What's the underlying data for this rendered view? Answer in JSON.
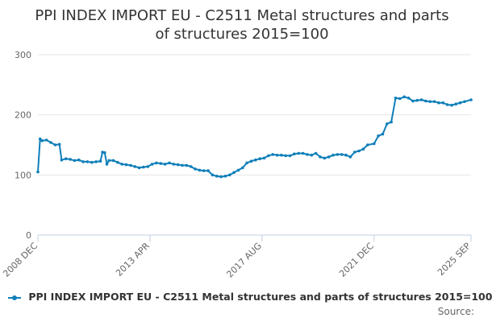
{
  "chart_data": {
    "type": "line",
    "title_line1": "PPI INDEX IMPORT EU - C2511 Metal structures and parts",
    "title_line2": "of structures 2015=100",
    "series": [
      {
        "name": "PPI INDEX IMPORT EU - C2511 Metal structures and parts of structures 2015=100",
        "color": "#0f7fb9",
        "x": [
          "2008-12",
          "2009-01",
          "2009-02",
          "2009-04",
          "2009-06",
          "2009-08",
          "2009-10",
          "2009-11",
          "2010-01",
          "2010-03",
          "2010-05",
          "2010-07",
          "2010-09",
          "2010-11",
          "2011-01",
          "2011-03",
          "2011-05",
          "2011-06",
          "2011-07",
          "2011-08",
          "2011-09",
          "2011-11",
          "2012-01",
          "2012-03",
          "2012-05",
          "2012-07",
          "2012-09",
          "2012-11",
          "2013-01",
          "2013-03",
          "2013-05",
          "2013-07",
          "2013-09",
          "2013-11",
          "2014-01",
          "2014-03",
          "2014-05",
          "2014-07",
          "2014-09",
          "2014-11",
          "2015-01",
          "2015-03",
          "2015-05",
          "2015-07",
          "2015-09",
          "2015-11",
          "2016-01",
          "2016-03",
          "2016-05",
          "2016-07",
          "2016-09",
          "2016-11",
          "2017-01",
          "2017-03",
          "2017-05",
          "2017-07",
          "2017-09",
          "2017-11",
          "2018-01",
          "2018-03",
          "2018-05",
          "2018-07",
          "2018-09",
          "2018-11",
          "2019-01",
          "2019-03",
          "2019-05",
          "2019-07",
          "2019-09",
          "2019-11",
          "2020-01",
          "2020-03",
          "2020-05",
          "2020-07",
          "2020-09",
          "2020-11",
          "2021-01",
          "2021-03",
          "2021-05",
          "2021-07",
          "2021-09",
          "2021-12",
          "2022-02",
          "2022-04",
          "2022-06",
          "2022-08",
          "2022-10",
          "2022-12",
          "2023-02",
          "2023-04",
          "2023-06",
          "2023-08",
          "2023-10",
          "2023-12",
          "2024-02",
          "2024-04",
          "2024-06",
          "2024-08",
          "2024-10",
          "2024-12",
          "2025-02",
          "2025-04",
          "2025-06",
          "2025-09"
        ],
        "values": [
          105,
          160,
          157,
          158,
          154,
          150,
          151,
          125,
          127,
          126,
          124,
          125,
          122,
          122,
          121,
          122,
          123,
          138,
          137,
          118,
          124,
          124,
          121,
          118,
          117,
          116,
          114,
          112,
          113,
          114,
          118,
          120,
          119,
          118,
          120,
          118,
          117,
          116,
          116,
          114,
          110,
          108,
          107,
          107,
          100,
          98,
          97,
          98,
          100,
          104,
          108,
          112,
          120,
          123,
          125,
          127,
          128,
          132,
          134,
          133,
          133,
          132,
          132,
          135,
          136,
          136,
          134,
          133,
          136,
          130,
          128,
          130,
          133,
          134,
          134,
          133,
          130,
          138,
          140,
          143,
          150,
          152,
          165,
          168,
          185,
          188,
          228,
          227,
          230,
          228,
          223,
          224,
          225,
          223,
          222,
          222,
          220,
          220,
          217,
          216,
          218,
          220,
          222,
          225
        ]
      }
    ],
    "x_ticks": [
      "2008 DEC",
      "2013 APR",
      "2017 AUG",
      "2021 DEC",
      "2025 SEP"
    ],
    "y_ticks": [
      0,
      100,
      200,
      300
    ],
    "ylim": [
      0,
      300
    ],
    "grid": true,
    "legend_position": "bottom-left",
    "source_label": "Source:"
  }
}
